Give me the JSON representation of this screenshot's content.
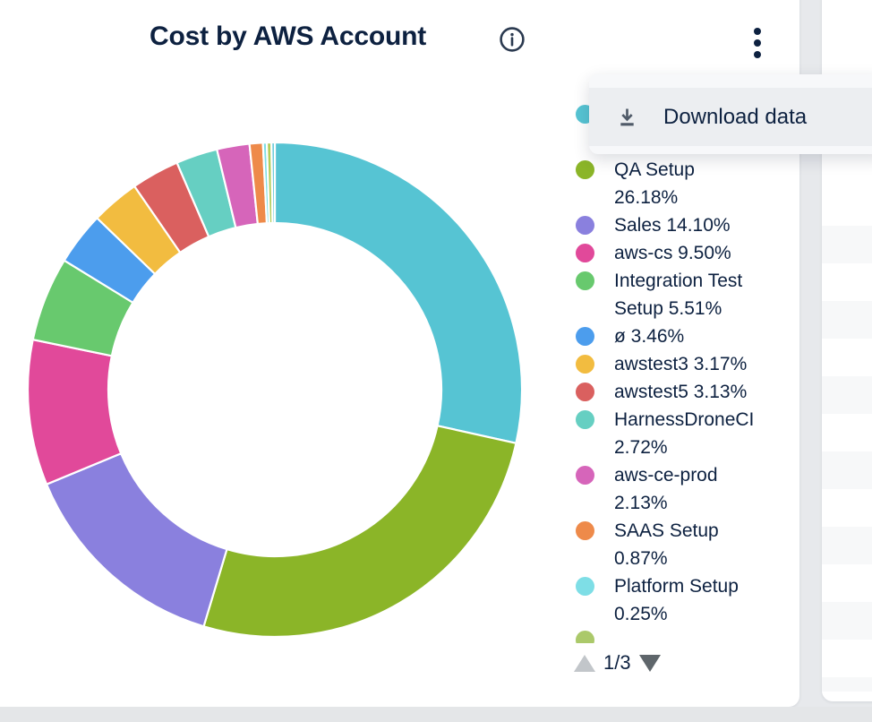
{
  "header": {
    "title": "Cost by AWS Account"
  },
  "menu": {
    "open": true,
    "items": [
      {
        "icon": "download-icon",
        "label": "Download data"
      }
    ]
  },
  "chart_data": {
    "type": "pie",
    "subtype": "donut",
    "title": "Cost by AWS Account",
    "legend_position": "right",
    "start_angle_deg": -90,
    "series": [
      {
        "name": "",
        "pct": 28.48,
        "color": "#56c4d3",
        "label_hidden_behind_menu": true
      },
      {
        "name": "QA Setup",
        "pct": 26.18,
        "color": "#8bb528"
      },
      {
        "name": "Sales",
        "pct": 14.1,
        "color": "#8a80de"
      },
      {
        "name": "aws-cs",
        "pct": 9.5,
        "color": "#e1499a"
      },
      {
        "name": "Integration Test Setup",
        "pct": 5.51,
        "color": "#68c96e"
      },
      {
        "name": "ø",
        "pct": 3.46,
        "color": "#4c9ded"
      },
      {
        "name": "awstest3",
        "pct": 3.17,
        "color": "#f2bc40"
      },
      {
        "name": "awstest5",
        "pct": 3.13,
        "color": "#da605f"
      },
      {
        "name": "HarnessDroneCI",
        "pct": 2.72,
        "color": "#66cfc2"
      },
      {
        "name": "aws-ce-prod",
        "pct": 2.13,
        "color": "#d665ba"
      },
      {
        "name": "SAAS Setup",
        "pct": 0.87,
        "color": "#ee8a4a"
      },
      {
        "name": "Platform Setup",
        "pct": 0.25,
        "color": "#7edee6"
      },
      {
        "name": "",
        "pct": 0.3,
        "color": "#b3cd5a",
        "label_hidden_behind_menu": true
      },
      {
        "name": "",
        "pct": 0.22,
        "color": "#62c8d8",
        "label_hidden_behind_menu": true
      }
    ]
  },
  "legend": {
    "items": [
      {
        "lines": [
          "",
          ""
        ],
        "color": "#56c4d3",
        "hidden_behind_menu": true
      },
      {
        "lines": [
          "QA Setup",
          "26.18%"
        ],
        "color": "#8bb528"
      },
      {
        "lines": [
          "Sales 14.10%"
        ],
        "color": "#8a80de"
      },
      {
        "lines": [
          "aws-cs 9.50%"
        ],
        "color": "#e1499a"
      },
      {
        "lines": [
          "Integration Test",
          "Setup 5.51%"
        ],
        "color": "#68c96e"
      },
      {
        "lines": [
          "ø 3.46%"
        ],
        "color": "#4c9ded"
      },
      {
        "lines": [
          "awstest3 3.17%"
        ],
        "color": "#f2bc40"
      },
      {
        "lines": [
          "awstest5 3.13%"
        ],
        "color": "#da605f"
      },
      {
        "lines": [
          "HarnessDroneCI",
          "2.72%"
        ],
        "color": "#66cfc2"
      },
      {
        "lines": [
          "aws-ce-prod",
          "2.13%"
        ],
        "color": "#d665ba"
      },
      {
        "lines": [
          "SAAS Setup",
          "0.87%"
        ],
        "color": "#ee8a4a"
      },
      {
        "lines": [
          "Platform Setup",
          "0.25%"
        ],
        "color": "#7edee6"
      }
    ],
    "partial_next_dot_color": "#abc96a"
  },
  "pagination": {
    "label": "1/3"
  },
  "colors": {
    "text": "#0d2140",
    "menu_bg": "#f7f8fa",
    "menu_row_bg": "#eceef1",
    "page_bg": "#e7e9ec",
    "stripe": "#f7f8f9",
    "pager_up": "#c2c6ca",
    "pager_down": "#5f666b"
  }
}
